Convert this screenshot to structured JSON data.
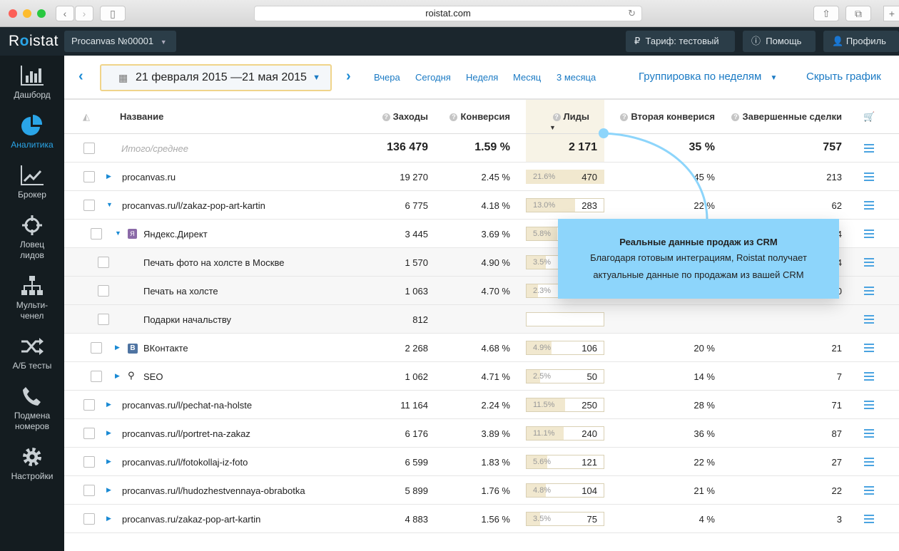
{
  "browser": {
    "url": "roistat.com"
  },
  "app": {
    "logo": "Roistat",
    "project": "Procanvas №00001",
    "tariff": "Тариф: тестовый",
    "help": "Помощь",
    "profile": "Профиль"
  },
  "sidebar": [
    {
      "label": "Дашборд",
      "icon": "bar-chart-icon"
    },
    {
      "label": "Аналитика",
      "icon": "pie-chart-icon",
      "active": true
    },
    {
      "label": "Брокер",
      "icon": "line-chart-icon"
    },
    {
      "label": "Ловец лидов",
      "icon": "crosshair-icon"
    },
    {
      "label": "Мульти-ченел",
      "icon": "sitemap-icon"
    },
    {
      "label": "А/Б тесты",
      "icon": "shuffle-icon"
    },
    {
      "label": "Подмена номеров",
      "icon": "phone-icon"
    },
    {
      "label": "Настройки",
      "icon": "gear-icon"
    }
  ],
  "toolbar": {
    "date_range": "21 февраля 2015 —21 мая 2015",
    "periods": [
      "Вчера",
      "Сегодня",
      "Неделя",
      "Месяц",
      "3 месяца"
    ],
    "grouping": "Группировка по неделям",
    "hide_chart": "Скрыть график"
  },
  "table": {
    "headers": {
      "name": "Название",
      "visits": "Заходы",
      "conversion": "Конверсия",
      "leads": "Лиды",
      "second_conversion": "Вторая конверися",
      "deals": "Завершенные сделки"
    },
    "totals": {
      "label": "Итого/среднее",
      "visits": "136 479",
      "conversion": "1.59 %",
      "leads": "2 171",
      "second_conversion": "35 %",
      "deals": "757"
    },
    "rows": [
      {
        "level": 0,
        "expand": "collapsed",
        "name": "procanvas.ru",
        "visits": "19 270",
        "conversion": "2.45 %",
        "leads_pct": "21.6%",
        "leads": "470",
        "leads_fill": 1.0,
        "second_conversion": "45 %",
        "deals": "213"
      },
      {
        "level": 0,
        "expand": "expanded",
        "name": "procanvas.ru/l/zakaz-pop-art-kartin",
        "visits": "6 775",
        "conversion": "4.18 %",
        "leads_pct": "13.0%",
        "leads": "283",
        "leads_fill": 0.63,
        "second_conversion": "22 %",
        "deals": "62"
      },
      {
        "level": 1,
        "expand": "expanded",
        "icon": "yandex-direct-icon",
        "name": "Яндекс.Директ",
        "visits": "3 445",
        "conversion": "3.69 %",
        "leads_pct": "5.8%",
        "leads": "",
        "leads_fill": 0.4,
        "second_conversion": "",
        "deals": "4"
      },
      {
        "level": 2,
        "name": "Печать фото на холсте в Москве",
        "visits": "1 570",
        "conversion": "4.90 %",
        "leads_pct": "3.5%",
        "leads": "",
        "leads_fill": 0.25,
        "second_conversion": "",
        "deals": "4"
      },
      {
        "level": 2,
        "name": "Печать на холсте",
        "visits": "1 063",
        "conversion": "4.70 %",
        "leads_pct": "2.3%",
        "leads": "",
        "leads_fill": 0.15,
        "second_conversion": "",
        "deals": "0"
      },
      {
        "level": 2,
        "name": "Подарки начальству",
        "visits": "812",
        "conversion": "",
        "leads_pct": "",
        "leads": "",
        "leads_fill": 0,
        "second_conversion": "",
        "deals": ""
      },
      {
        "level": 1,
        "expand": "collapsed",
        "icon": "vk-icon",
        "name": "ВКонтакте",
        "visits": "2 268",
        "conversion": "4.68 %",
        "leads_pct": "4.9%",
        "leads": "106",
        "leads_fill": 0.32,
        "second_conversion": "20 %",
        "deals": "21"
      },
      {
        "level": 1,
        "expand": "collapsed",
        "icon": "search-icon",
        "name": "SEO",
        "visits": "1 062",
        "conversion": "4.71 %",
        "leads_pct": "2.5%",
        "leads": "50",
        "leads_fill": 0.18,
        "second_conversion": "14 %",
        "deals": "7"
      },
      {
        "level": 0,
        "expand": "collapsed",
        "name": "procanvas.ru/l/pechat-na-holste",
        "visits": "11 164",
        "conversion": "2.24 %",
        "leads_pct": "11.5%",
        "leads": "250",
        "leads_fill": 0.5,
        "second_conversion": "28 %",
        "deals": "71"
      },
      {
        "level": 0,
        "expand": "collapsed",
        "name": "procanvas.ru/l/portret-na-zakaz",
        "visits": "6 176",
        "conversion": "3.89 %",
        "leads_pct": "11.1%",
        "leads": "240",
        "leads_fill": 0.48,
        "second_conversion": "36 %",
        "deals": "87"
      },
      {
        "level": 0,
        "expand": "collapsed",
        "name": "procanvas.ru/l/fotokollaj-iz-foto",
        "visits": "6 599",
        "conversion": "1.83 %",
        "leads_pct": "5.6%",
        "leads": "121",
        "leads_fill": 0.27,
        "second_conversion": "22 %",
        "deals": "27"
      },
      {
        "level": 0,
        "expand": "collapsed",
        "name": "procanvas.ru/l/hudozhestvennaya-obrabotka",
        "visits": "5 899",
        "conversion": "1.76 %",
        "leads_pct": "4.8%",
        "leads": "104",
        "leads_fill": 0.25,
        "second_conversion": "21 %",
        "deals": "22"
      },
      {
        "level": 0,
        "expand": "collapsed",
        "name": "procanvas.ru/zakaz-pop-art-kartin",
        "visits": "4 883",
        "conversion": "1.56 %",
        "leads_pct": "3.5%",
        "leads": "75",
        "leads_fill": 0.18,
        "second_conversion": "4 %",
        "deals": "3"
      }
    ]
  },
  "tooltip": {
    "title": "Реальные данные продаж из CRM",
    "text_line1": "Благодаря готовым интеграциям, Roistat получает",
    "text_line2": "актуальные данные по продажам из вашей CRM"
  },
  "colors": {
    "accent": "#1a7ac4",
    "sidebar_bg": "#141c20",
    "tooltip": "#8dd5fb",
    "leads_fill": "#f1e8cf"
  }
}
